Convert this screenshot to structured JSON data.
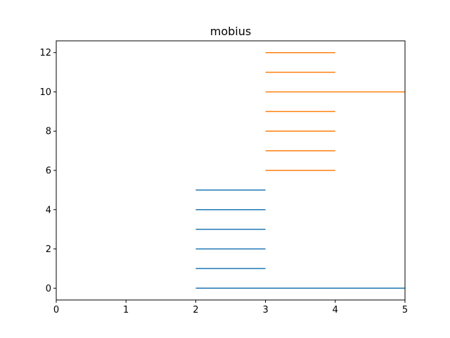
{
  "chart_data": {
    "type": "line",
    "title": "mobius",
    "xlabel": "",
    "ylabel": "",
    "xlim": [
      0,
      5
    ],
    "ylim": [
      -0.6,
      12.6
    ],
    "xticks": [
      0,
      1,
      2,
      3,
      4,
      5
    ],
    "yticks": [
      0,
      2,
      4,
      6,
      8,
      10,
      12
    ],
    "grid": false,
    "series": [
      {
        "color": "#1f77b4",
        "segments": [
          {
            "x": [
              2,
              5
            ],
            "y": [
              0,
              0
            ]
          },
          {
            "x": [
              2,
              3
            ],
            "y": [
              1,
              1
            ]
          },
          {
            "x": [
              2,
              3
            ],
            "y": [
              2,
              2
            ]
          },
          {
            "x": [
              2,
              3
            ],
            "y": [
              3,
              3
            ]
          },
          {
            "x": [
              2,
              3
            ],
            "y": [
              4,
              4
            ]
          },
          {
            "x": [
              2,
              3
            ],
            "y": [
              5,
              5
            ]
          }
        ]
      },
      {
        "color": "#ff7f0e",
        "segments": [
          {
            "x": [
              3,
              4
            ],
            "y": [
              6,
              6
            ]
          },
          {
            "x": [
              3,
              4
            ],
            "y": [
              7,
              7
            ]
          },
          {
            "x": [
              3,
              4
            ],
            "y": [
              8,
              8
            ]
          },
          {
            "x": [
              3,
              4
            ],
            "y": [
              9,
              9
            ]
          },
          {
            "x": [
              3,
              5
            ],
            "y": [
              10,
              10
            ]
          },
          {
            "x": [
              3,
              4
            ],
            "y": [
              11,
              11
            ]
          },
          {
            "x": [
              3,
              4
            ],
            "y": [
              12,
              12
            ]
          }
        ]
      }
    ]
  }
}
